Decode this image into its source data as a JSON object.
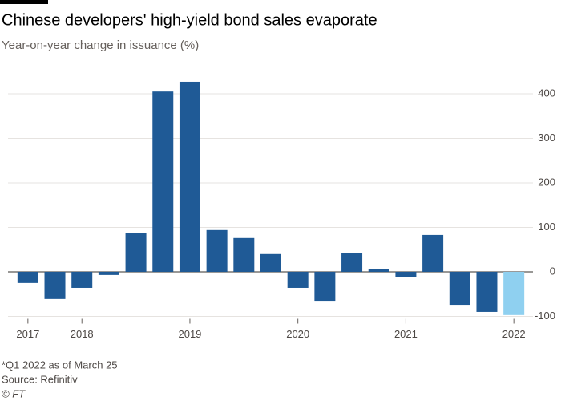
{
  "chart_data": {
    "type": "bar",
    "title": "Chinese developers' high-yield bond sales evaporate",
    "subtitle": "Year-on-year change in issuance (%)",
    "categories": [
      "2017",
      null,
      "2018",
      null,
      null,
      null,
      "2019",
      null,
      null,
      null,
      "2020",
      null,
      null,
      null,
      "2021",
      null,
      null,
      null,
      "2022"
    ],
    "values": [
      -25,
      -61,
      -36,
      -7,
      88,
      405,
      427,
      94,
      76,
      40,
      -36,
      -65,
      43,
      7,
      -11,
      83,
      -74,
      -90,
      -97
    ],
    "colors": [
      "#1f5a96",
      "#1f5a96",
      "#1f5a96",
      "#1f5a96",
      "#1f5a96",
      "#1f5a96",
      "#1f5a96",
      "#1f5a96",
      "#1f5a96",
      "#1f5a96",
      "#1f5a96",
      "#1f5a96",
      "#1f5a96",
      "#1f5a96",
      "#1f5a96",
      "#1f5a96",
      "#1f5a96",
      "#1f5a96",
      "#8fd0f0"
    ],
    "ylim": [
      -100,
      430
    ],
    "yticks": [
      -100,
      0,
      100,
      200,
      300,
      400
    ],
    "grid": true,
    "notes": [
      "*Q1 2022 as of March 25",
      "Source: Refinitiv",
      "© FT"
    ]
  }
}
